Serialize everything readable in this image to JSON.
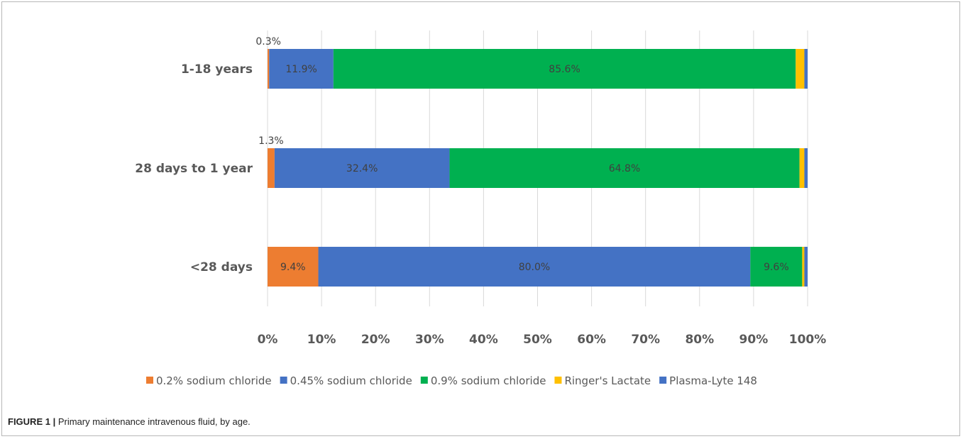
{
  "chart_data": {
    "type": "bar",
    "orientation": "horizontal",
    "stacked": true,
    "categories": [
      "1-18 years",
      "28 days to 1 year",
      "<28 days"
    ],
    "series": [
      {
        "name": "0.2% sodium chloride",
        "color": "#ED7D31",
        "values": [
          0.3,
          1.3,
          9.4
        ],
        "labels": [
          "0.3%",
          "1.3%",
          "9.4%"
        ]
      },
      {
        "name": "0.45% sodium chloride",
        "color": "#4472C4",
        "values": [
          11.9,
          32.4,
          80.0
        ],
        "labels": [
          "11.9%",
          "32.4%",
          "80.0%"
        ]
      },
      {
        "name": "0.9% sodium chloride",
        "color": "#00B050",
        "values": [
          85.6,
          64.8,
          9.6
        ],
        "labels": [
          "85.6%",
          "64.8%",
          "9.6%"
        ]
      },
      {
        "name": "Ringer's Lactate",
        "color": "#FFC000",
        "values": [
          1.6,
          0.9,
          0.4
        ],
        "labels": [
          "",
          "",
          ""
        ]
      },
      {
        "name": "Plasma-Lyte 148",
        "color": "#4472C4",
        "values": [
          0.6,
          0.6,
          0.6
        ],
        "labels": [
          "",
          "",
          ""
        ]
      }
    ],
    "xlim": [
      0,
      100
    ],
    "x_ticks": [
      "0%",
      "10%",
      "20%",
      "30%",
      "40%",
      "50%",
      "60%",
      "70%",
      "80%",
      "90%",
      "100%"
    ],
    "grid": true,
    "legend_position": "bottom"
  },
  "caption": {
    "label": "FIGURE 1 |",
    "text": " Primary maintenance intravenous fluid, by age."
  }
}
